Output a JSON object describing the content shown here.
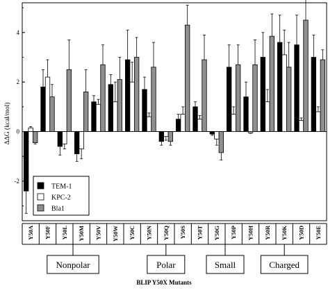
{
  "chart_data": {
    "type": "bar",
    "title": "",
    "ylabel": "ΔΔG (kcal/mol)",
    "xlabel": "BLIP Y50X Mutants",
    "ylim": [
      -3.6,
      5.2
    ],
    "yticks": [
      -2,
      0,
      2,
      4
    ],
    "ytick_labels": [
      "-2",
      "0",
      "2",
      "4"
    ],
    "grid": false,
    "legend_position": "left",
    "colors": {
      "TEM-1": "#000000",
      "KPC-2": "#ffffff",
      "Bla1": "#8f8f8f"
    },
    "categories": [
      "Y50A",
      "Y50F",
      "Y50L",
      "Y50M",
      "Y50V",
      "Y50W",
      "Y50C",
      "Y50N",
      "Y50Q",
      "Y50S",
      "Y50T",
      "Y50G",
      "Y50P",
      "Y50H",
      "Y50R",
      "Y50K",
      "Y50D",
      "Y50E"
    ],
    "series": [
      {
        "name": "TEM-1",
        "values": [
          -2.4,
          1.8,
          -0.6,
          -0.9,
          1.2,
          1.9,
          2.9,
          1.7,
          -0.4,
          0.5,
          1.0,
          -0.1,
          2.6,
          1.4,
          3.0,
          3.6,
          3.5,
          3.0
        ],
        "errors": [
          0.9,
          0.7,
          0.35,
          0.3,
          0.25,
          0.4,
          1.2,
          0.5,
          0.15,
          0.2,
          0.2,
          0.05,
          0.9,
          0.6,
          1.0,
          1.1,
          1.2,
          0.9
        ]
      },
      {
        "name": "KPC-2",
        "values": [
          0.15,
          2.2,
          -0.5,
          -0.7,
          1.1,
          1.2,
          2.0,
          0.6,
          -0.2,
          0.7,
          0.5,
          -0.3,
          0.7,
          -0.05,
          1.2,
          3.1,
          0.45,
          0.8
        ],
        "errors": [
          0.05,
          0.7,
          0.2,
          0.4,
          0.2,
          0.8,
          0.8,
          0.15,
          0.15,
          0.3,
          0.15,
          0.25,
          0.3,
          0.02,
          0.5,
          1.0,
          0.1,
          0.2
        ]
      },
      {
        "name": "Bla1",
        "values": [
          -0.45,
          1.4,
          2.5,
          1.6,
          2.7,
          2.1,
          3.0,
          2.6,
          -0.4,
          4.3,
          2.9,
          -0.85,
          2.7,
          2.7,
          3.85,
          2.6,
          4.5,
          2.9
        ],
        "errors": [
          0.05,
          0.5,
          1.2,
          0.9,
          0.8,
          0.9,
          0.8,
          1.0,
          0.15,
          0.8,
          1.0,
          0.3,
          0.8,
          1.0,
          0.9,
          1.0,
          1.1,
          0.4
        ]
      }
    ],
    "groups": [
      {
        "label": "Nonpolar",
        "from": 0,
        "to": 5
      },
      {
        "label": "Polar",
        "from": 6,
        "to": 10
      },
      {
        "label": "Small",
        "from": 11,
        "to": 12
      },
      {
        "label": "Charged",
        "from": 13,
        "to": 17
      }
    ]
  }
}
